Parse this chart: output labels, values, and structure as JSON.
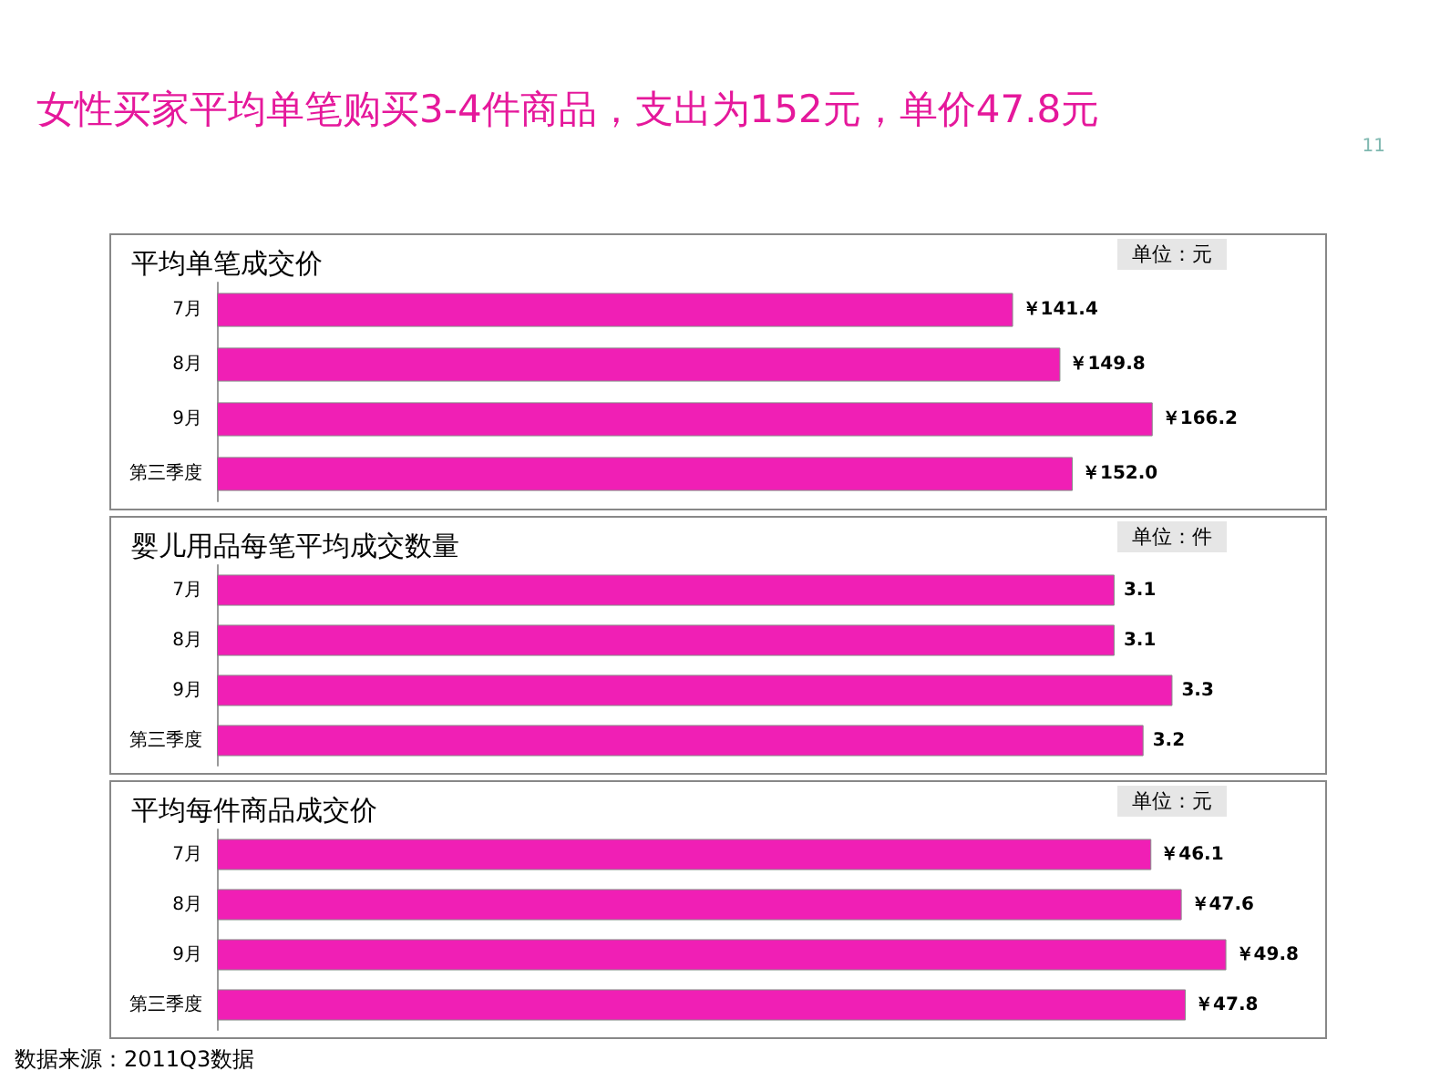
{
  "chart_data": [
    {
      "type": "bar",
      "orientation": "horizontal",
      "title": "平均单笔成交价",
      "subtitle": "单位：元",
      "annotations": [
        "女性买家平均单笔购买3-4件商品，支出为152元，单价47.8元",
        "11"
      ],
      "categories": [
        "7月",
        "8月",
        "9月",
        "第三季度"
      ],
      "values": [
        141.4,
        149.8,
        166.2,
        152.0
      ],
      "value_labels": [
        "￥141.4",
        "￥149.8",
        "￥166.2",
        "￥152.0"
      ],
      "color": "#f01fb5"
    },
    {
      "type": "bar",
      "orientation": "horizontal",
      "title": "婴儿用品每笔平均成交数量",
      "subtitle": "单位：件",
      "categories": [
        "7月",
        "8月",
        "9月",
        "第三季度"
      ],
      "values": [
        3.1,
        3.1,
        3.3,
        3.2
      ],
      "data_labels": true,
      "color": "#f01fb5"
    },
    {
      "type": "bar",
      "orientation": "horizontal",
      "title": "平均每件商品成交价",
      "subtitle": "单位：元",
      "annotations": [
        "数据来源：2011Q3数据"
      ],
      "categories": [
        "7月",
        "8月",
        "9月",
        "第三季度"
      ],
      "values": [
        46.1,
        47.6,
        49.8,
        47.8
      ],
      "value_labels": [
        "￥46.1",
        "￥47.6",
        "￥49.8",
        "￥47.8"
      ],
      "color": "#f01fb5"
    }
  ]
}
